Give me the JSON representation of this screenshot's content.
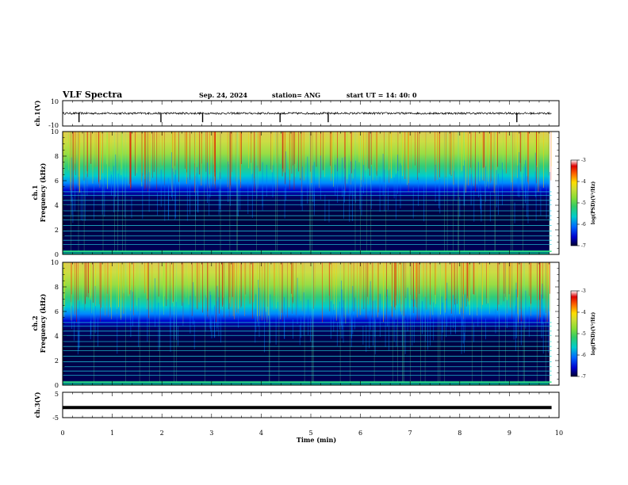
{
  "header": {
    "title": "VLF Spectra",
    "date": "Sep. 24, 2024",
    "station": "station= ANG",
    "start": "start  UT =   14: 40: 0"
  },
  "colors": {
    "waveform": "#000000",
    "colormap": [
      "#000033",
      "#0000cc",
      "#0066ff",
      "#00cccc",
      "#33cc66",
      "#88dd33",
      "#ccdd33",
      "#ffdd00",
      "#ff6600",
      "#dd0000",
      "#ffffff"
    ]
  },
  "chart_data": [
    {
      "type": "line",
      "ylabel": "ch.1(V)",
      "ylim": [
        -10,
        10
      ],
      "yticks": [
        "10",
        "-10"
      ],
      "xlim": [
        0,
        10
      ],
      "baseline": 0,
      "spike_times": [
        0.33,
        1.98,
        2.82,
        4.38,
        5.35,
        9.15
      ]
    },
    {
      "type": "heatmap",
      "ylabel_line1": "ch.1",
      "ylabel_line2": "Frequency  (kHz)",
      "ylim": [
        0,
        10
      ],
      "yticks": [
        "0",
        "2",
        "4",
        "6",
        "8",
        "10"
      ],
      "xlim": [
        0,
        10
      ],
      "data_end_min": 9.85,
      "colorbar": {
        "range": [
          -7,
          -3
        ],
        "ticks": [
          "-3",
          "-4",
          "-5",
          "-6",
          "-7"
        ],
        "label": "log(PSD)(V²/Hz)"
      },
      "lines_khz": [
        0.8,
        1.15,
        1.5,
        1.9,
        2.35,
        2.8,
        3.15,
        3.55,
        4.05,
        4.4,
        4.8,
        5.1
      ]
    },
    {
      "type": "heatmap",
      "ylabel_line1": "ch.2",
      "ylabel_line2": "Frequency  (kHz)",
      "ylim": [
        0,
        10
      ],
      "yticks": [
        "0",
        "2",
        "4",
        "6",
        "8",
        "10"
      ],
      "xlim": [
        0,
        10
      ],
      "data_end_min": 9.85,
      "colorbar": {
        "range": [
          -7,
          -3
        ],
        "ticks": [
          "-3",
          "-4",
          "-5",
          "-6",
          "-7"
        ],
        "label": "log(PSD)(V²/Hz)"
      },
      "lines_khz": [
        0.8,
        1.15,
        1.5,
        1.9,
        2.35,
        2.8,
        3.15,
        3.55,
        4.05,
        4.4,
        4.8,
        5.1
      ]
    },
    {
      "type": "line",
      "ylabel": "ch.3(V)",
      "ylim": [
        -5,
        5
      ],
      "yticks": [
        "5",
        "-5"
      ],
      "xlim": [
        0,
        10
      ],
      "baseline": -1,
      "xticks": [
        "0",
        "1",
        "2",
        "3",
        "4",
        "5",
        "6",
        "7",
        "8",
        "9",
        "10"
      ],
      "xlabel": "Time  (min)"
    }
  ]
}
